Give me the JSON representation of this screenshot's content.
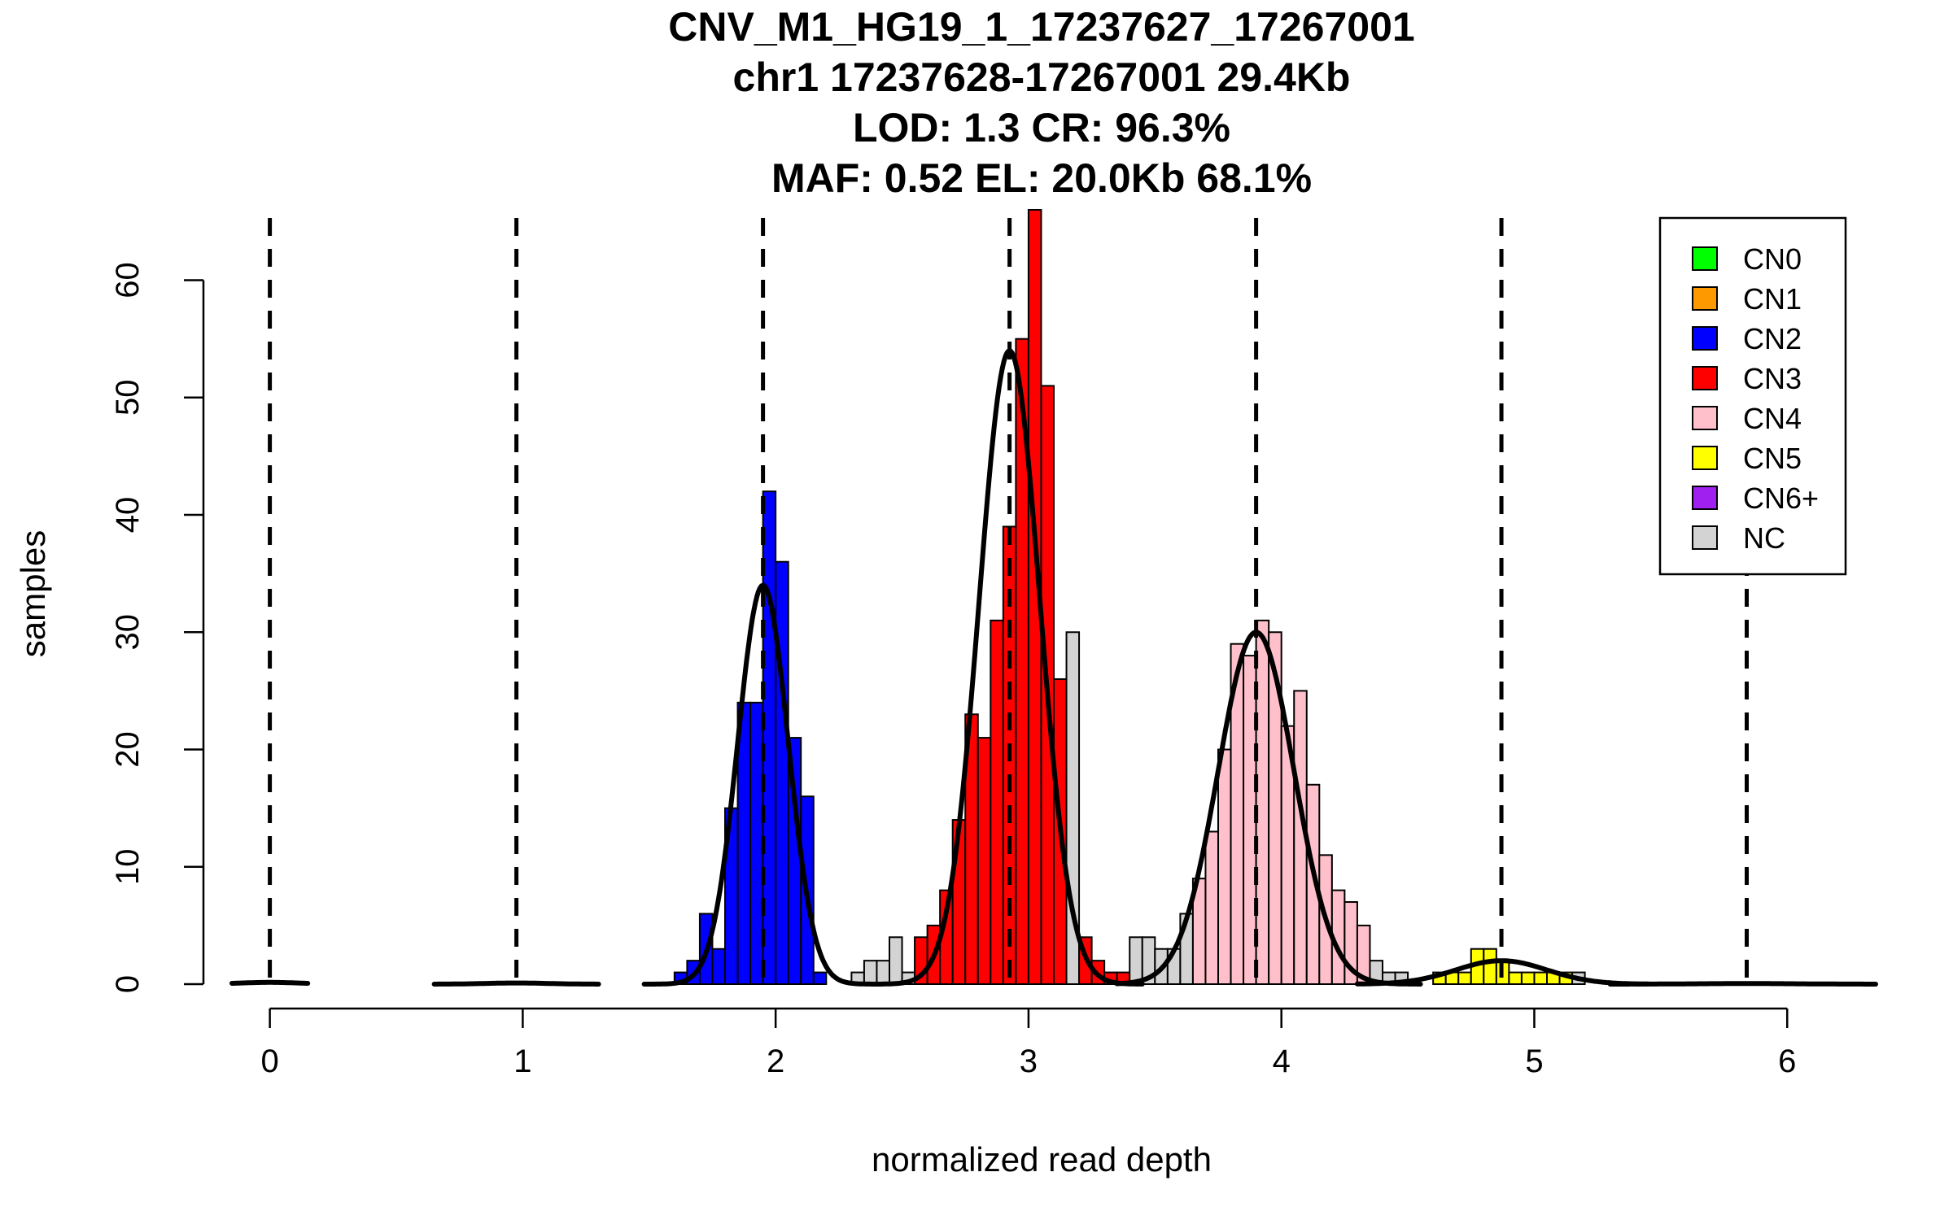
{
  "chart_data": {
    "type": "histogram",
    "title_lines": [
      "CNV_M1_HG19_1_17237627_17267001",
      "chr1 17237628-17267001 29.4Kb",
      "LOD: 1.3 CR: 96.3%",
      "MAF: 0.52 EL: 20.0Kb 68.1%"
    ],
    "xlabel": "normalized read depth",
    "ylabel": "samples",
    "xlim": [
      -0.15,
      6.35
    ],
    "ylim": [
      0,
      66
    ],
    "x_ticks": [
      0,
      1,
      2,
      3,
      4,
      5,
      6
    ],
    "y_ticks": [
      0,
      10,
      20,
      30,
      40,
      50,
      60
    ],
    "bin_width": 0.05,
    "cn_lines": [
      0,
      0.975,
      1.95,
      2.925,
      3.9,
      4.87,
      5.84
    ],
    "colors": {
      "CN0": "#00ff00",
      "CN1": "#ff9900",
      "CN2": "#0000ff",
      "CN3": "#ff0000",
      "CN4": "#ffc0cb",
      "CN5": "#ffff00",
      "CN6+": "#a020f0",
      "NC": "#d3d3d3"
    },
    "legend": {
      "position": "top-right",
      "entries": [
        "CN0",
        "CN1",
        "CN2",
        "CN3",
        "CN4",
        "CN5",
        "CN6+",
        "NC"
      ]
    },
    "bins": [
      {
        "x": 1.6,
        "y": 1,
        "cls": "CN2"
      },
      {
        "x": 1.65,
        "y": 2,
        "cls": "CN2"
      },
      {
        "x": 1.7,
        "y": 6,
        "cls": "CN2"
      },
      {
        "x": 1.75,
        "y": 3,
        "cls": "CN2"
      },
      {
        "x": 1.8,
        "y": 15,
        "cls": "CN2"
      },
      {
        "x": 1.85,
        "y": 24,
        "cls": "CN2"
      },
      {
        "x": 1.9,
        "y": 24,
        "cls": "CN2"
      },
      {
        "x": 1.95,
        "y": 42,
        "cls": "CN2"
      },
      {
        "x": 2.0,
        "y": 36,
        "cls": "CN2"
      },
      {
        "x": 2.05,
        "y": 21,
        "cls": "CN2"
      },
      {
        "x": 2.1,
        "y": 16,
        "cls": "CN2"
      },
      {
        "x": 2.15,
        "y": 1,
        "cls": "CN2"
      },
      {
        "x": 2.3,
        "y": 1,
        "cls": "NC"
      },
      {
        "x": 2.35,
        "y": 2,
        "cls": "NC"
      },
      {
        "x": 2.4,
        "y": 2,
        "cls": "NC"
      },
      {
        "x": 2.45,
        "y": 4,
        "cls": "NC"
      },
      {
        "x": 2.5,
        "y": 1,
        "cls": "NC"
      },
      {
        "x": 2.55,
        "y": 4,
        "cls": "CN3"
      },
      {
        "x": 2.6,
        "y": 5,
        "cls": "CN3"
      },
      {
        "x": 2.65,
        "y": 8,
        "cls": "CN3"
      },
      {
        "x": 2.7,
        "y": 14,
        "cls": "CN3"
      },
      {
        "x": 2.75,
        "y": 23,
        "cls": "CN3"
      },
      {
        "x": 2.8,
        "y": 21,
        "cls": "CN3"
      },
      {
        "x": 2.85,
        "y": 31,
        "cls": "CN3"
      },
      {
        "x": 2.9,
        "y": 39,
        "cls": "CN3"
      },
      {
        "x": 2.95,
        "y": 55,
        "cls": "CN3"
      },
      {
        "x": 3.0,
        "y": 66,
        "cls": "CN3"
      },
      {
        "x": 3.05,
        "y": 51,
        "cls": "CN3"
      },
      {
        "x": 3.1,
        "y": 26,
        "cls": "CN3"
      },
      {
        "x": 3.15,
        "y": 30,
        "cls": "NC"
      },
      {
        "x": 3.2,
        "y": 4,
        "cls": "CN3"
      },
      {
        "x": 3.25,
        "y": 2,
        "cls": "CN3"
      },
      {
        "x": 3.3,
        "y": 1,
        "cls": "CN3"
      },
      {
        "x": 3.35,
        "y": 1,
        "cls": "CN3"
      },
      {
        "x": 3.4,
        "y": 4,
        "cls": "NC"
      },
      {
        "x": 3.45,
        "y": 4,
        "cls": "NC"
      },
      {
        "x": 3.5,
        "y": 3,
        "cls": "NC"
      },
      {
        "x": 3.55,
        "y": 3,
        "cls": "NC"
      },
      {
        "x": 3.6,
        "y": 6,
        "cls": "NC"
      },
      {
        "x": 3.65,
        "y": 9,
        "cls": "CN4"
      },
      {
        "x": 3.7,
        "y": 13,
        "cls": "CN4"
      },
      {
        "x": 3.75,
        "y": 20,
        "cls": "CN4"
      },
      {
        "x": 3.8,
        "y": 29,
        "cls": "CN4"
      },
      {
        "x": 3.85,
        "y": 28,
        "cls": "CN4"
      },
      {
        "x": 3.9,
        "y": 31,
        "cls": "CN4"
      },
      {
        "x": 3.95,
        "y": 30,
        "cls": "CN4"
      },
      {
        "x": 4.0,
        "y": 22,
        "cls": "CN4"
      },
      {
        "x": 4.05,
        "y": 25,
        "cls": "CN4"
      },
      {
        "x": 4.1,
        "y": 17,
        "cls": "CN4"
      },
      {
        "x": 4.15,
        "y": 11,
        "cls": "CN4"
      },
      {
        "x": 4.2,
        "y": 8,
        "cls": "CN4"
      },
      {
        "x": 4.25,
        "y": 7,
        "cls": "CN4"
      },
      {
        "x": 4.3,
        "y": 5,
        "cls": "CN4"
      },
      {
        "x": 4.35,
        "y": 2,
        "cls": "NC"
      },
      {
        "x": 4.4,
        "y": 1,
        "cls": "NC"
      },
      {
        "x": 4.45,
        "y": 1,
        "cls": "NC"
      },
      {
        "x": 4.6,
        "y": 1,
        "cls": "CN5"
      },
      {
        "x": 4.65,
        "y": 1,
        "cls": "CN5"
      },
      {
        "x": 4.7,
        "y": 1,
        "cls": "CN5"
      },
      {
        "x": 4.75,
        "y": 3,
        "cls": "CN5"
      },
      {
        "x": 4.8,
        "y": 3,
        "cls": "CN5"
      },
      {
        "x": 4.85,
        "y": 2,
        "cls": "CN5"
      },
      {
        "x": 4.9,
        "y": 1,
        "cls": "CN5"
      },
      {
        "x": 4.95,
        "y": 1,
        "cls": "CN5"
      },
      {
        "x": 5.0,
        "y": 1,
        "cls": "CN5"
      },
      {
        "x": 5.05,
        "y": 1,
        "cls": "CN5"
      },
      {
        "x": 5.1,
        "y": 1,
        "cls": "CN5"
      },
      {
        "x": 5.15,
        "y": 1,
        "cls": "NC"
      }
    ],
    "fits": [
      {
        "cls": "CN0",
        "mean": 0,
        "sd": 0.12,
        "height": 0.15,
        "range": [
          -0.15,
          0.15
        ]
      },
      {
        "cls": "CN1",
        "mean": 0.975,
        "sd": 0.12,
        "height": 0.1,
        "range": [
          0.65,
          1.3
        ]
      },
      {
        "cls": "CN2",
        "mean": 1.95,
        "sd": 0.1,
        "height": 34,
        "range": [
          1.48,
          2.42
        ]
      },
      {
        "cls": "CN3",
        "mean": 2.925,
        "sd": 0.12,
        "height": 54,
        "range": [
          2.42,
          3.45
        ]
      },
      {
        "cls": "CN4",
        "mean": 3.9,
        "sd": 0.15,
        "height": 30,
        "range": [
          3.35,
          4.55
        ]
      },
      {
        "cls": "CN5",
        "mean": 4.87,
        "sd": 0.18,
        "height": 2,
        "range": [
          4.3,
          5.45
        ]
      },
      {
        "cls": "CN6+",
        "mean": 5.84,
        "sd": 0.2,
        "height": 0.05,
        "range": [
          5.3,
          6.35
        ]
      }
    ]
  }
}
